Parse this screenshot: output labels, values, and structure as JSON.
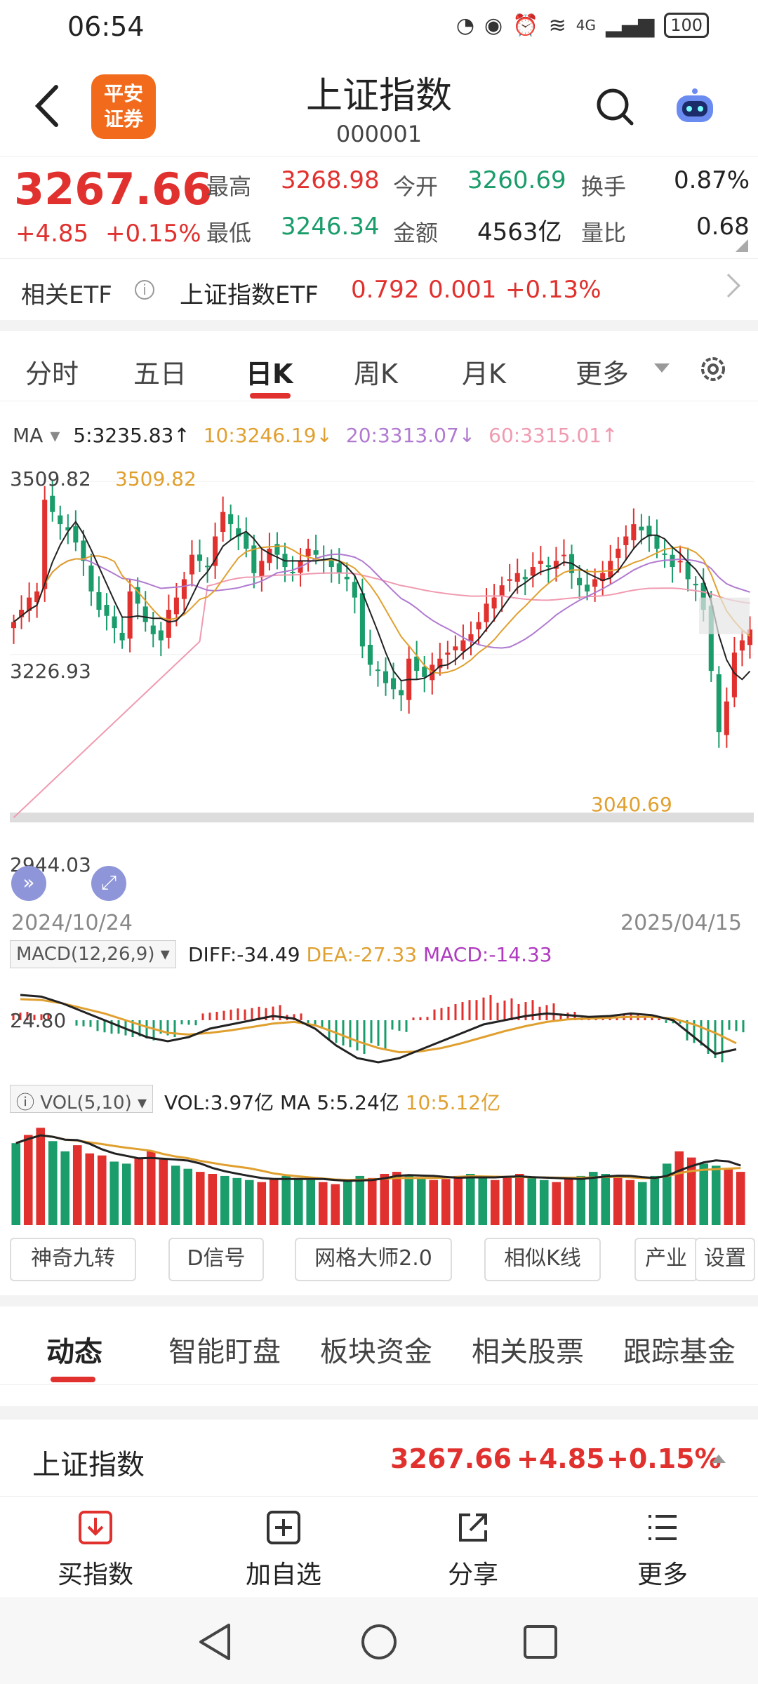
{
  "status": {
    "time": "06:54",
    "network": "4G",
    "battery": "100"
  },
  "header": {
    "logo_text": "平安证券",
    "title": "上证指数",
    "code": "000001"
  },
  "quote": {
    "price": "3267.66",
    "change": "+4.85",
    "change_pct": "+0.15%",
    "high_label": "最高",
    "high": "3268.98",
    "open_label": "今开",
    "open": "3260.69",
    "turnover_label": "换手",
    "turnover": "0.87%",
    "low_label": "最低",
    "low": "3246.34",
    "amount_label": "金额",
    "amount": "4563亿",
    "vol_ratio_label": "量比",
    "vol_ratio": "0.68"
  },
  "etf": {
    "label": "相关ETF",
    "name": "上证指数ETF",
    "price": "0.792",
    "change": "0.001",
    "change_pct": "+0.13%"
  },
  "period_tabs": [
    "分时",
    "五日",
    "日K",
    "周K",
    "月K",
    "更多"
  ],
  "active_period": "日K",
  "ma_legend": {
    "label": "MA",
    "ma5": "5:3235.83↑",
    "ma10": "10:3246.19↓",
    "ma20": "20:3313.07↓",
    "ma60": "60:3315.01↑"
  },
  "chart_data": {
    "type": "candlestick",
    "price_axis_labels": [
      "3509.82",
      "3226.93",
      "2944.03"
    ],
    "annotations": [
      "3509.82",
      "3040.69"
    ],
    "start_date": "2024/10/24",
    "end_date": "2025/04/15",
    "colors": {
      "up": "#e0312e",
      "down": "#1a9c6b",
      "ma5": "#222222",
      "ma10": "#e0a030",
      "ma20": "#b07ad0",
      "ma60": "#f09ab0"
    },
    "close": [
      3280,
      3300,
      3320,
      3330,
      3480,
      3460,
      3440,
      3430,
      3410,
      3380,
      3330,
      3300,
      3290,
      3270,
      3250,
      3330,
      3310,
      3280,
      3260,
      3250,
      3300,
      3320,
      3350,
      3390,
      3380,
      3370,
      3420,
      3460,
      3440,
      3420,
      3400,
      3360,
      3380,
      3400,
      3390,
      3370,
      3360,
      3380,
      3400,
      3390,
      3380,
      3370,
      3360,
      3350,
      3320,
      3240,
      3210,
      3200,
      3180,
      3170,
      3160,
      3220,
      3200,
      3190,
      3210,
      3220,
      3230,
      3240,
      3250,
      3260,
      3280,
      3310,
      3320,
      3340,
      3350,
      3360,
      3350,
      3370,
      3380,
      3370,
      3380,
      3390,
      3360,
      3340,
      3330,
      3350,
      3360,
      3380,
      3400,
      3420,
      3440,
      3430,
      3420,
      3400,
      3390,
      3370,
      3380,
      3350,
      3340,
      3300,
      3200,
      3100,
      3150,
      3230,
      3250,
      3267.66
    ],
    "macd": {
      "label": "MACD(12,26,9)",
      "diff": "DIFF:-34.49",
      "dea": "DEA:-27.33",
      "macd": "MACD:-14.33",
      "axis_label": "24.80",
      "diff_values": [
        30,
        28,
        20,
        10,
        0,
        -10,
        -20,
        -25,
        -20,
        -10,
        -5,
        0,
        5,
        2,
        -10,
        -30,
        -45,
        -50,
        -45,
        -35,
        -25,
        -15,
        -5,
        0,
        5,
        8,
        6,
        4,
        5,
        8,
        6,
        0,
        -20,
        -40,
        -34.49
      ],
      "dea_values": [
        25,
        24,
        20,
        14,
        8,
        0,
        -8,
        -15,
        -17,
        -15,
        -12,
        -8,
        -4,
        -2,
        -6,
        -15,
        -25,
        -33,
        -38,
        -37,
        -33,
        -27,
        -20,
        -13,
        -7,
        -2,
        1,
        2,
        3,
        4,
        4,
        2,
        -5,
        -15,
        -27.33
      ]
    },
    "volume": {
      "label": "VOL(5,10)",
      "vol": "VOL:3.97亿",
      "ma5": "MA 5:5.24亿",
      "ma10": "10:5.12亿",
      "values": [
        80,
        88,
        95,
        82,
        72,
        78,
        70,
        68,
        62,
        60,
        66,
        72,
        64,
        58,
        55,
        52,
        50,
        48,
        46,
        44,
        42,
        45,
        48,
        46,
        44,
        42,
        40,
        44,
        48,
        46,
        50,
        52,
        48,
        46,
        44,
        45,
        48,
        50,
        46,
        44,
        48,
        50,
        46,
        44,
        42,
        45,
        48,
        52,
        50,
        46,
        44,
        42,
        48,
        60,
        72,
        66,
        60,
        58,
        55,
        52
      ]
    }
  },
  "tools": [
    "神奇九转",
    "D信号",
    "网格大师2.0",
    "相似K线",
    "产业",
    "设置"
  ],
  "section_tabs": [
    "动态",
    "智能盯盘",
    "板块资金",
    "相关股票",
    "跟踪基金"
  ],
  "active_section": "动态",
  "bottom_quote": {
    "name": "上证指数",
    "price": "3267.66",
    "change": "+4.85",
    "change_pct": "+0.15%"
  },
  "actions": [
    "买指数",
    "加自选",
    "分享",
    "更多"
  ]
}
